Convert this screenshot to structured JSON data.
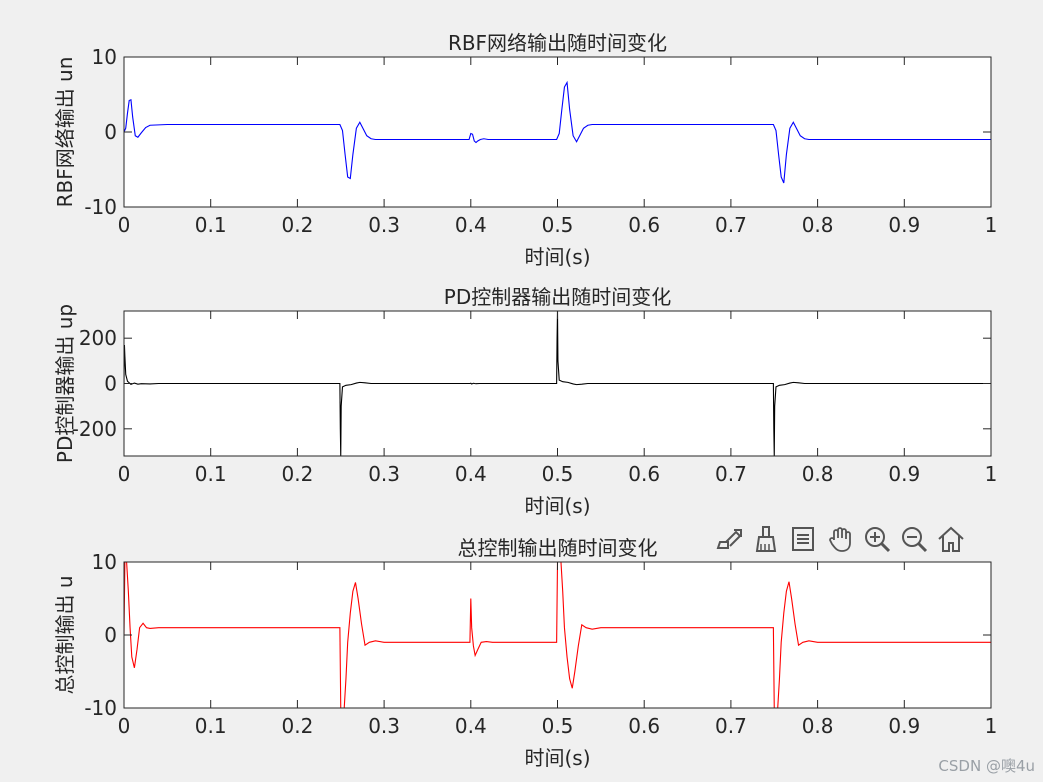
{
  "chart_data": [
    {
      "type": "line",
      "title": "RBF网络输出随时间变化",
      "xlabel": "时间(s)",
      "ylabel": "RBF网络输出 un",
      "xlim": [
        0,
        1
      ],
      "ylim": [
        -10,
        10
      ],
      "xticks": [
        "0",
        "0.1",
        "0.2",
        "0.3",
        "0.4",
        "0.5",
        "0.6",
        "0.7",
        "0.8",
        "0.9",
        "1"
      ],
      "yticks": [
        "-10",
        "0",
        "10"
      ],
      "yticks_values": [
        -10,
        0,
        10
      ],
      "color": "#0000ff",
      "x": [
        0,
        0.002,
        0.004,
        0.006,
        0.008,
        0.01,
        0.013,
        0.016,
        0.02,
        0.025,
        0.03,
        0.04,
        0.05,
        0.1,
        0.2,
        0.249,
        0.252,
        0.255,
        0.258,
        0.261,
        0.264,
        0.268,
        0.272,
        0.276,
        0.28,
        0.285,
        0.29,
        0.3,
        0.35,
        0.398,
        0.4,
        0.402,
        0.404,
        0.406,
        0.408,
        0.411,
        0.415,
        0.42,
        0.45,
        0.499,
        0.502,
        0.505,
        0.508,
        0.511,
        0.514,
        0.518,
        0.522,
        0.526,
        0.53,
        0.535,
        0.54,
        0.55,
        0.6,
        0.7,
        0.749,
        0.752,
        0.755,
        0.758,
        0.761,
        0.764,
        0.768,
        0.772,
        0.776,
        0.78,
        0.785,
        0.79,
        0.8,
        0.9,
        1.0
      ],
      "values": [
        0,
        0.5,
        2.5,
        4.2,
        4.3,
        2.0,
        -0.5,
        -0.7,
        -0.1,
        0.6,
        0.9,
        0.95,
        1.0,
        1.0,
        1.0,
        1.0,
        0.2,
        -3.0,
        -6.0,
        -6.2,
        -3.0,
        0.5,
        1.3,
        0.4,
        -0.5,
        -0.9,
        -1.0,
        -1.0,
        -1.0,
        -1.0,
        -0.2,
        -0.3,
        -1.2,
        -1.4,
        -1.2,
        -1.0,
        -0.9,
        -1.0,
        -1.0,
        -1.0,
        -0.2,
        3.0,
        6.0,
        6.6,
        3.0,
        -0.5,
        -1.3,
        -0.4,
        0.5,
        0.9,
        1.0,
        1.0,
        1.0,
        1.0,
        1.0,
        0.2,
        -3.0,
        -6.0,
        -6.8,
        -3.0,
        0.5,
        1.3,
        0.4,
        -0.5,
        -0.9,
        -1.0,
        -1.0,
        -1.0,
        -1.0
      ]
    },
    {
      "type": "line",
      "title": "PD控制器输出随时间变化",
      "xlabel": "时间(s)",
      "ylabel": "PD控制器输出 up",
      "xlim": [
        0,
        1
      ],
      "ylim": [
        -320,
        320
      ],
      "xticks": [
        "0",
        "0.1",
        "0.2",
        "0.3",
        "0.4",
        "0.5",
        "0.6",
        "0.7",
        "0.8",
        "0.9",
        "1"
      ],
      "yticks": [
        "-200",
        "0",
        "200"
      ],
      "yticks_values": [
        -200,
        0,
        200
      ],
      "color": "#000000",
      "x": [
        0,
        0.0005,
        0.001,
        0.002,
        0.004,
        0.008,
        0.012,
        0.016,
        0.02,
        0.03,
        0.04,
        0.249,
        0.2495,
        0.25,
        0.2505,
        0.252,
        0.256,
        0.262,
        0.268,
        0.272,
        0.278,
        0.285,
        0.295,
        0.399,
        0.4,
        0.401,
        0.403,
        0.406,
        0.41,
        0.499,
        0.4995,
        0.5,
        0.5005,
        0.502,
        0.506,
        0.512,
        0.518,
        0.522,
        0.528,
        0.535,
        0.545,
        0.749,
        0.7495,
        0.75,
        0.7505,
        0.752,
        0.756,
        0.762,
        0.768,
        0.772,
        0.778,
        0.785,
        0.795,
        1.0
      ],
      "values": [
        0,
        170,
        120,
        40,
        10,
        -4,
        2,
        -3,
        -1,
        -2,
        0,
        0,
        -200,
        -320,
        -100,
        -15,
        -8,
        -5,
        2,
        5,
        3,
        0,
        0,
        0,
        1,
        -2,
        1,
        -1,
        0,
        0,
        200,
        320,
        100,
        15,
        8,
        5,
        -2,
        -5,
        -3,
        0,
        0,
        0,
        -200,
        -320,
        -100,
        -15,
        -8,
        -5,
        2,
        5,
        3,
        0,
        0,
        0
      ]
    },
    {
      "type": "line",
      "title": "总控制输出随时间变化",
      "xlabel": "时间(s)",
      "ylabel": "总控制输出 u",
      "xlim": [
        0,
        1
      ],
      "ylim": [
        -10,
        10
      ],
      "xticks": [
        "0",
        "0.1",
        "0.2",
        "0.3",
        "0.4",
        "0.5",
        "0.6",
        "0.7",
        "0.8",
        "0.9",
        "1"
      ],
      "yticks": [
        "-10",
        "0",
        "10"
      ],
      "yticks_values": [
        -10,
        0,
        10
      ],
      "color": "#ff0000",
      "x": [
        0,
        0.001,
        0.003,
        0.005,
        0.007,
        0.009,
        0.012,
        0.015,
        0.018,
        0.022,
        0.026,
        0.03,
        0.04,
        0.1,
        0.2,
        0.249,
        0.25,
        0.252,
        0.254,
        0.256,
        0.258,
        0.261,
        0.264,
        0.267,
        0.27,
        0.274,
        0.278,
        0.283,
        0.29,
        0.3,
        0.35,
        0.399,
        0.4,
        0.401,
        0.403,
        0.405,
        0.408,
        0.412,
        0.418,
        0.425,
        0.45,
        0.499,
        0.5,
        0.502,
        0.504,
        0.506,
        0.508,
        0.511,
        0.514,
        0.517,
        0.52,
        0.524,
        0.528,
        0.533,
        0.54,
        0.55,
        0.6,
        0.7,
        0.749,
        0.75,
        0.752,
        0.754,
        0.756,
        0.758,
        0.761,
        0.764,
        0.767,
        0.77,
        0.774,
        0.778,
        0.783,
        0.79,
        0.8,
        0.9,
        1.0
      ],
      "values": [
        0,
        10,
        10,
        6,
        1,
        -3,
        -4.5,
        -2,
        1,
        1.6,
        1.0,
        0.9,
        1.0,
        1.0,
        1.0,
        1.0,
        -10,
        -10,
        -10,
        -6,
        -1,
        3,
        6,
        7.2,
        5,
        1.5,
        -1.4,
        -1.0,
        -0.8,
        -1.0,
        -1.0,
        -1.0,
        5,
        1.0,
        -1.5,
        -2.8,
        -2.0,
        -1.0,
        -0.9,
        -1.0,
        -1.0,
        -1.0,
        10,
        10,
        10,
        6,
        1,
        -3,
        -6,
        -7.3,
        -5,
        -1.5,
        1.4,
        1.0,
        0.8,
        1.0,
        1.0,
        1.0,
        1.0,
        -10,
        -10,
        -10,
        -6,
        -1,
        3,
        6,
        7.3,
        5,
        1.5,
        -1.4,
        -1.0,
        -0.8,
        -1.0,
        -1.0,
        -1.0
      ]
    }
  ],
  "toolbar": {
    "icons": [
      "export-icon",
      "brush-icon",
      "data-tips-icon",
      "pan-hand-icon",
      "zoom-in-icon",
      "zoom-out-icon",
      "home-icon"
    ]
  },
  "watermark": "CSDN @噢4u"
}
